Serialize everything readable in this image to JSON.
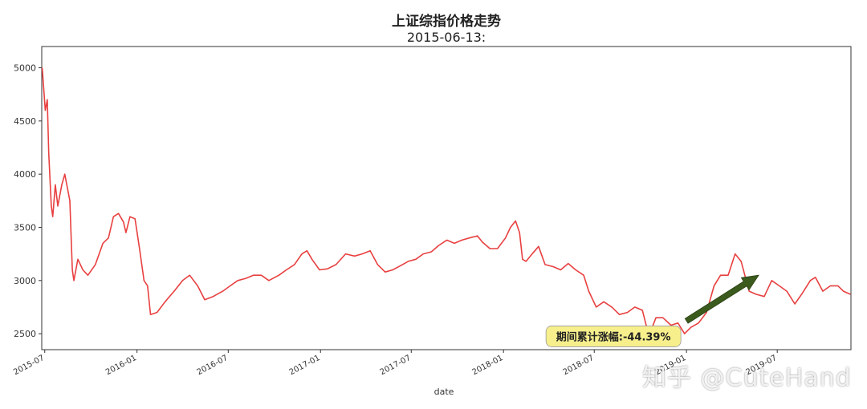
{
  "chart_data": {
    "type": "line",
    "title": "上证综指价格走势",
    "subtitle": "2015-06-13:",
    "xlabel": "date",
    "ylabel": "",
    "xlim": [
      "2015-06-25",
      "2019-11-25"
    ],
    "ylim": [
      2350,
      5200
    ],
    "yticks": [
      2500,
      3000,
      3500,
      4000,
      4500,
      5000
    ],
    "xticks": [
      "2015-07",
      "2016-01",
      "2016-07",
      "2017-01",
      "2017-07",
      "2018-01",
      "2018-07",
      "2019-01",
      "2019-07"
    ],
    "grid": false,
    "series": [
      {
        "color": "#e84040",
        "points": [
          [
            "2015-06-26",
            5000
          ],
          [
            "2015-07-02",
            4600
          ],
          [
            "2015-07-06",
            4700
          ],
          [
            "2015-07-09",
            4200
          ],
          [
            "2015-07-14",
            3700
          ],
          [
            "2015-07-17",
            3600
          ],
          [
            "2015-07-22",
            3900
          ],
          [
            "2015-07-27",
            3700
          ],
          [
            "2015-08-04",
            3900
          ],
          [
            "2015-08-10",
            4000
          ],
          [
            "2015-08-14",
            3900
          ],
          [
            "2015-08-20",
            3750
          ],
          [
            "2015-08-25",
            3100
          ],
          [
            "2015-08-28",
            3000
          ],
          [
            "2015-09-05",
            3200
          ],
          [
            "2015-09-15",
            3100
          ],
          [
            "2015-09-25",
            3050
          ],
          [
            "2015-10-10",
            3150
          ],
          [
            "2015-10-25",
            3350
          ],
          [
            "2015-11-05",
            3400
          ],
          [
            "2015-11-15",
            3600
          ],
          [
            "2015-11-25",
            3630
          ],
          [
            "2015-12-05",
            3550
          ],
          [
            "2015-12-10",
            3450
          ],
          [
            "2015-12-18",
            3600
          ],
          [
            "2015-12-28",
            3580
          ],
          [
            "2016-01-06",
            3300
          ],
          [
            "2016-01-15",
            3000
          ],
          [
            "2016-01-22",
            2950
          ],
          [
            "2016-01-28",
            2680
          ],
          [
            "2016-02-10",
            2700
          ],
          [
            "2016-02-26",
            2800
          ],
          [
            "2016-03-15",
            2900
          ],
          [
            "2016-04-01",
            3000
          ],
          [
            "2016-04-15",
            3050
          ],
          [
            "2016-05-01",
            2950
          ],
          [
            "2016-05-15",
            2820
          ],
          [
            "2016-06-01",
            2850
          ],
          [
            "2016-06-20",
            2900
          ],
          [
            "2016-07-05",
            2950
          ],
          [
            "2016-07-20",
            3000
          ],
          [
            "2016-08-05",
            3020
          ],
          [
            "2016-08-20",
            3050
          ],
          [
            "2016-09-05",
            3050
          ],
          [
            "2016-09-20",
            3000
          ],
          [
            "2016-10-10",
            3050
          ],
          [
            "2016-10-25",
            3100
          ],
          [
            "2016-11-10",
            3150
          ],
          [
            "2016-11-25",
            3250
          ],
          [
            "2016-12-05",
            3280
          ],
          [
            "2016-12-15",
            3200
          ],
          [
            "2016-12-30",
            3100
          ],
          [
            "2017-01-15",
            3110
          ],
          [
            "2017-02-01",
            3150
          ],
          [
            "2017-02-20",
            3250
          ],
          [
            "2017-03-10",
            3230
          ],
          [
            "2017-03-25",
            3250
          ],
          [
            "2017-04-10",
            3280
          ],
          [
            "2017-04-25",
            3150
          ],
          [
            "2017-05-10",
            3080
          ],
          [
            "2017-05-25",
            3100
          ],
          [
            "2017-06-10",
            3140
          ],
          [
            "2017-06-25",
            3180
          ],
          [
            "2017-07-10",
            3200
          ],
          [
            "2017-07-25",
            3250
          ],
          [
            "2017-08-10",
            3270
          ],
          [
            "2017-08-25",
            3330
          ],
          [
            "2017-09-10",
            3380
          ],
          [
            "2017-09-25",
            3350
          ],
          [
            "2017-10-10",
            3380
          ],
          [
            "2017-10-25",
            3400
          ],
          [
            "2017-11-10",
            3420
          ],
          [
            "2017-11-20",
            3360
          ],
          [
            "2017-12-05",
            3300
          ],
          [
            "2017-12-20",
            3300
          ],
          [
            "2018-01-05",
            3400
          ],
          [
            "2018-01-15",
            3500
          ],
          [
            "2018-01-25",
            3560
          ],
          [
            "2018-02-02",
            3450
          ],
          [
            "2018-02-08",
            3200
          ],
          [
            "2018-02-15",
            3180
          ],
          [
            "2018-03-01",
            3260
          ],
          [
            "2018-03-12",
            3320
          ],
          [
            "2018-03-25",
            3150
          ],
          [
            "2018-04-10",
            3130
          ],
          [
            "2018-04-25",
            3100
          ],
          [
            "2018-05-10",
            3160
          ],
          [
            "2018-05-25",
            3100
          ],
          [
            "2018-06-10",
            3050
          ],
          [
            "2018-06-20",
            2900
          ],
          [
            "2018-07-05",
            2750
          ],
          [
            "2018-07-20",
            2800
          ],
          [
            "2018-08-05",
            2750
          ],
          [
            "2018-08-20",
            2680
          ],
          [
            "2018-09-05",
            2700
          ],
          [
            "2018-09-20",
            2750
          ],
          [
            "2018-10-05",
            2720
          ],
          [
            "2018-10-18",
            2480
          ],
          [
            "2018-11-01",
            2650
          ],
          [
            "2018-11-15",
            2650
          ],
          [
            "2018-12-01",
            2580
          ],
          [
            "2018-12-15",
            2600
          ],
          [
            "2018-12-28",
            2500
          ],
          [
            "2019-01-10",
            2560
          ],
          [
            "2019-01-25",
            2600
          ],
          [
            "2019-02-10",
            2700
          ],
          [
            "2019-02-25",
            2950
          ],
          [
            "2019-03-10",
            3050
          ],
          [
            "2019-03-25",
            3050
          ],
          [
            "2019-04-08",
            3250
          ],
          [
            "2019-04-20",
            3180
          ],
          [
            "2019-05-06",
            2900
          ],
          [
            "2019-05-20",
            2870
          ],
          [
            "2019-06-05",
            2850
          ],
          [
            "2019-06-20",
            3000
          ],
          [
            "2019-07-05",
            2950
          ],
          [
            "2019-07-20",
            2900
          ],
          [
            "2019-08-05",
            2780
          ],
          [
            "2019-08-20",
            2880
          ],
          [
            "2019-09-05",
            3000
          ],
          [
            "2019-09-15",
            3030
          ],
          [
            "2019-09-30",
            2900
          ],
          [
            "2019-10-15",
            2950
          ],
          [
            "2019-10-30",
            2950
          ],
          [
            "2019-11-10",
            2900
          ],
          [
            "2019-11-24",
            2870
          ]
        ]
      }
    ],
    "annotation": {
      "text": "期间累计涨幅:-44.39%",
      "box_color": "#f6ef8c",
      "arrow_color": "#3b5a1d",
      "arrow_from": [
        "2019-01-01",
        2620
      ],
      "arrow_to": [
        "2019-05-25",
        3050
      ]
    }
  },
  "watermark": "知乎 @CuteHand"
}
